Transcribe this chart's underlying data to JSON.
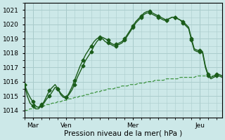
{
  "title": "",
  "xlabel": "Pression niveau de la mer( hPa )",
  "ylabel": "",
  "bg_color": "#cce8e8",
  "grid_color": "#aacccc",
  "line_color_dark": "#1a5c1a",
  "line_color_light": "#2e8b2e",
  "ylim": [
    1013.5,
    1021.5
  ],
  "yticks": [
    1014,
    1015,
    1016,
    1017,
    1018,
    1019,
    1020,
    1021
  ],
  "xlim": [
    0,
    71
  ],
  "x_tick_positions": [
    3,
    15,
    39,
    63
  ],
  "x_tick_labels": [
    "Mar",
    "Ven",
    "Mer",
    "Jeu"
  ],
  "x_vlines": [
    3,
    15,
    39,
    63
  ],
  "num_points": 72,
  "series1": [
    1015.8,
    1015.3,
    1014.9,
    1014.6,
    1014.3,
    1014.2,
    1014.4,
    1014.5,
    1014.8,
    1015.0,
    1015.3,
    1015.6,
    1015.5,
    1015.2,
    1015.0,
    1014.9,
    1015.1,
    1015.4,
    1015.8,
    1016.3,
    1016.7,
    1017.1,
    1017.5,
    1017.8,
    1018.1,
    1018.5,
    1018.8,
    1019.0,
    1019.1,
    1019.0,
    1018.9,
    1018.7,
    1018.6,
    1018.6,
    1018.7,
    1018.8,
    1019.0,
    1019.3,
    1019.6,
    1019.9,
    1020.2,
    1020.4,
    1020.6,
    1020.8,
    1020.9,
    1020.9,
    1020.8,
    1020.7,
    1020.6,
    1020.5,
    1020.4,
    1020.3,
    1020.4,
    1020.5,
    1020.5,
    1020.4,
    1020.3,
    1020.2,
    1020.0,
    1019.8,
    1019.0,
    1018.3,
    1018.2,
    1018.2,
    1018.1,
    1017.1,
    1016.5,
    1016.3,
    1016.4,
    1016.5,
    1016.5,
    1016.4
  ],
  "series2": [
    1015.8,
    1015.0,
    1014.5,
    1014.3,
    1014.1,
    1014.1,
    1014.3,
    1014.6,
    1015.0,
    1015.4,
    1015.6,
    1015.8,
    1015.5,
    1015.1,
    1014.9,
    1014.9,
    1015.2,
    1015.6,
    1016.1,
    1016.6,
    1017.1,
    1017.5,
    1017.9,
    1018.2,
    1018.5,
    1018.8,
    1019.0,
    1019.1,
    1019.0,
    1018.8,
    1018.7,
    1018.6,
    1018.5,
    1018.5,
    1018.6,
    1018.7,
    1018.9,
    1019.2,
    1019.5,
    1019.8,
    1020.1,
    1020.3,
    1020.5,
    1020.7,
    1020.8,
    1020.8,
    1020.7,
    1020.6,
    1020.5,
    1020.4,
    1020.3,
    1020.3,
    1020.4,
    1020.5,
    1020.5,
    1020.4,
    1020.3,
    1020.1,
    1019.9,
    1019.7,
    1018.9,
    1018.2,
    1018.1,
    1018.1,
    1018.0,
    1017.0,
    1016.4,
    1016.2,
    1016.3,
    1016.4,
    1016.4,
    1016.3
  ],
  "series3": [
    1014.0,
    1014.0,
    1014.1,
    1014.1,
    1014.2,
    1014.2,
    1014.3,
    1014.3,
    1014.4,
    1014.4,
    1014.5,
    1014.5,
    1014.6,
    1014.6,
    1014.7,
    1014.7,
    1014.8,
    1014.8,
    1014.9,
    1014.9,
    1015.0,
    1015.0,
    1015.1,
    1015.1,
    1015.2,
    1015.2,
    1015.3,
    1015.3,
    1015.4,
    1015.4,
    1015.5,
    1015.5,
    1015.5,
    1015.6,
    1015.6,
    1015.7,
    1015.7,
    1015.7,
    1015.8,
    1015.8,
    1015.8,
    1015.9,
    1015.9,
    1015.9,
    1016.0,
    1016.0,
    1016.0,
    1016.1,
    1016.1,
    1016.1,
    1016.1,
    1016.2,
    1016.2,
    1016.2,
    1016.2,
    1016.2,
    1016.3,
    1016.3,
    1016.3,
    1016.3,
    1016.3,
    1016.3,
    1016.4,
    1016.4,
    1016.4,
    1016.4,
    1016.4,
    1016.4,
    1016.4,
    1016.4,
    1016.4,
    1016.4
  ],
  "marker_step": 3,
  "marker_size": 2.5,
  "tick_fontsize": 6.5,
  "xlabel_fontsize": 7.5
}
